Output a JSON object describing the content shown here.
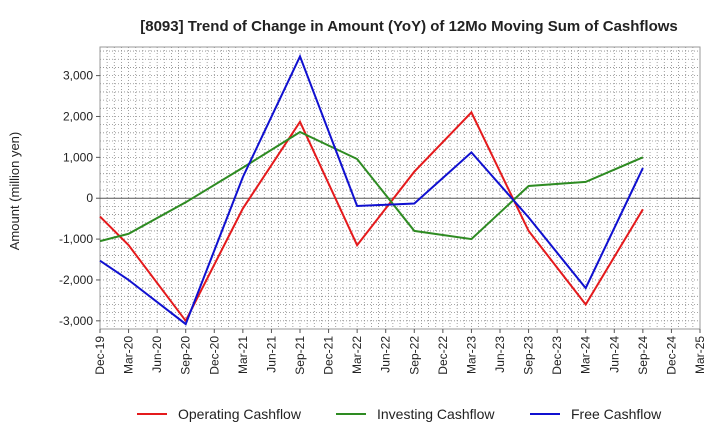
{
  "chart_data": {
    "type": "line",
    "title": "[8093]  Trend of Change in Amount (YoY) of 12Mo Moving Sum of Cashflows",
    "xlabel": "",
    "ylabel": "Amount (million yen)",
    "ylim": [
      -3200,
      3700
    ],
    "yticks": [
      -3000,
      -2000,
      -1000,
      0,
      1000,
      2000,
      3000
    ],
    "ytick_labels": [
      "-3,000",
      "-2,000",
      "-1,000",
      "0",
      "1,000",
      "2,000",
      "3,000"
    ],
    "categories": [
      "Dec-19",
      "Mar-20",
      "Jun-20",
      "Sep-20",
      "Dec-20",
      "Mar-21",
      "Jun-21",
      "Sep-21",
      "Dec-21",
      "Mar-22",
      "Jun-22",
      "Sep-22",
      "Dec-22",
      "Mar-23",
      "Jun-23",
      "Sep-23",
      "Dec-23",
      "Mar-24",
      "Jun-24",
      "Sep-24",
      "Dec-24",
      "Mar-25"
    ],
    "grid": true,
    "legend_position": "bottom",
    "series": [
      {
        "name": "Operating Cashflow",
        "color": "#e41a1c",
        "points": [
          [
            0,
            -450
          ],
          [
            1,
            -1150
          ],
          [
            3,
            -3000
          ],
          [
            5,
            -250
          ],
          [
            7,
            1870
          ],
          [
            9,
            -1150
          ],
          [
            11,
            650
          ],
          [
            13,
            2100
          ],
          [
            15,
            -800
          ],
          [
            17,
            -2600
          ],
          [
            19,
            -270
          ]
        ]
      },
      {
        "name": "Investing Cashflow",
        "color": "#2e8b22",
        "points": [
          [
            0,
            -1050
          ],
          [
            1,
            -870
          ],
          [
            3,
            -100
          ],
          [
            5,
            750
          ],
          [
            7,
            1620
          ],
          [
            9,
            960
          ],
          [
            11,
            -800
          ],
          [
            13,
            -1000
          ],
          [
            15,
            300
          ],
          [
            17,
            400
          ],
          [
            19,
            1000
          ]
        ]
      },
      {
        "name": "Free Cashflow",
        "color": "#1010d0",
        "points": [
          [
            0,
            -1530
          ],
          [
            1,
            -2000
          ],
          [
            3,
            -3080
          ],
          [
            5,
            520
          ],
          [
            7,
            3470
          ],
          [
            9,
            -190
          ],
          [
            11,
            -130
          ],
          [
            13,
            1120
          ],
          [
            15,
            -470
          ],
          [
            17,
            -2200
          ],
          [
            19,
            740
          ]
        ]
      }
    ]
  }
}
